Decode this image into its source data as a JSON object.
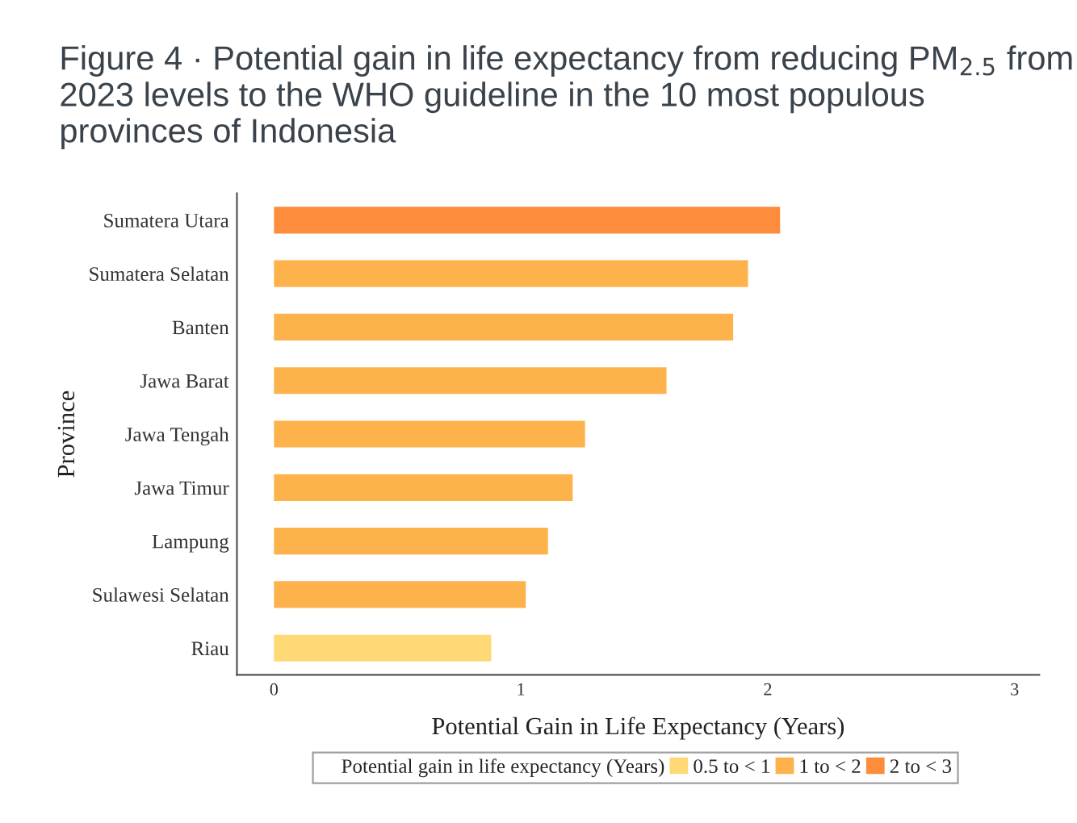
{
  "chart_data": {
    "type": "bar",
    "orientation": "horizontal",
    "title": "Figure 4 · Potential gain in life expectancy from reducing PM$_{2.5}$ from 2023 levels to the WHO guideline in the 10 most populous provinces of Indonesia",
    "categories": [
      "Sumatera Utara",
      "Sumatera Selatan",
      "Banten",
      "Jawa Barat",
      "Jawa Tengah",
      "Jawa Timur",
      "Lampung",
      "Sulawesi Selatan",
      "Riau"
    ],
    "series": [
      {
        "name": "0.5 to < 1",
        "color": "#fed976",
        "values": [
          null,
          null,
          null,
          null,
          null,
          null,
          null,
          null,
          0.88
        ]
      },
      {
        "name": "1 to < 2",
        "color": "#feb24c",
        "values": [
          null,
          1.92,
          1.86,
          1.59,
          1.26,
          1.21,
          1.11,
          1.02,
          null
        ]
      },
      {
        "name": "2 to < 3",
        "color": "#fd8d3c",
        "values": [
          2.05,
          null,
          null,
          null,
          null,
          null,
          null,
          null,
          null
        ]
      }
    ],
    "xlabel": "Potential Gain in Life Expectancy (Years)",
    "ylabel": "Province",
    "legend_title": "Potential gain in life expectancy (Years)",
    "legend": "bottom",
    "xlim": [
      -0.15,
      3.1
    ],
    "xticks": [
      0,
      1,
      2,
      3
    ],
    "grid": false
  }
}
